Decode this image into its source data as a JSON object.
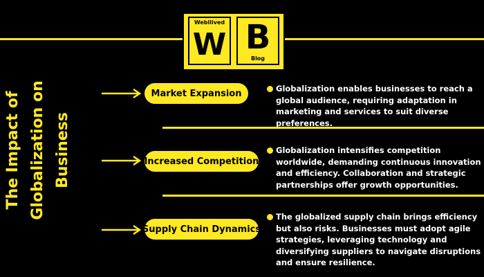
{
  "logo": {
    "brand": "Webllived",
    "left_letter": "W",
    "right_letter": "B",
    "right_caption": "Blog"
  },
  "title": {
    "line1": "The Impact of",
    "line2": "Globalization on",
    "line3": "Business"
  },
  "items": [
    {
      "label": "Market Expansion",
      "description": "Globalization enables businesses to reach a global audience, requiring adaptation in marketing and services to suit diverse preferences."
    },
    {
      "label": "Increased Competition",
      "description": "Globalization intensifies competition worldwide, demanding continuous innovation and efficiency. Collaboration and strategic partnerships offer growth opportunities."
    },
    {
      "label": "Supply Chain Dynamics",
      "description": "The globalized supply chain brings efficiency but also risks. Businesses must adopt agile strategies, leveraging technology and diversifying suppliers to navigate disruptions and ensure resilience."
    }
  ],
  "colors": {
    "accent": "#FFE923",
    "background": "#000000",
    "text": "#FFFFFF"
  }
}
